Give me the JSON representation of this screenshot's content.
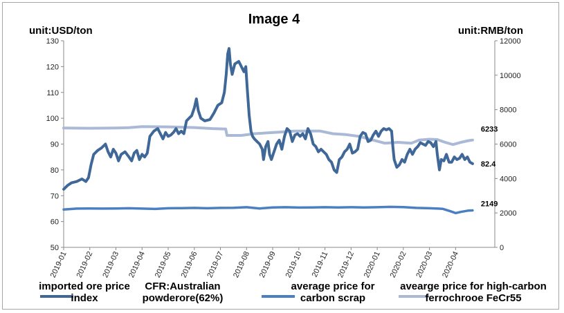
{
  "chart_data": {
    "type": "line",
    "title": "Image 4",
    "left_unit": "unit:USD/ton",
    "right_unit": "unit:RMB/ton",
    "left_axis": {
      "min": 50,
      "max": 130,
      "step": 10,
      "ticks": [
        "50",
        "60",
        "70",
        "80",
        "90",
        "100",
        "110",
        "120",
        "130"
      ]
    },
    "right_axis": {
      "min": 0,
      "max": 12000,
      "step": 2000,
      "ticks": [
        "0",
        "2000",
        "4000",
        "6000",
        "8000",
        "10000",
        "12000"
      ]
    },
    "x_range": [
      0,
      16.5
    ],
    "x_categories": [
      "2019-01",
      "2019-02",
      "2019-03",
      "2019-04",
      "2019-05",
      "2019-06",
      "2019-07",
      "2019-08",
      "2019-09",
      "2019-10",
      "2019-11",
      "2019-12",
      "2020-01",
      "2020-02",
      "2020-03",
      "2020-04"
    ],
    "series": [
      {
        "name": "imported ore price index CFR:Australian powderore(62%)",
        "legend_left": "imported ore price\nindex",
        "legend_right": "CFR:Australian\npowderore(62%)",
        "axis": "left",
        "color": "#3f6797",
        "end_label": "82.4",
        "points": [
          [
            0.0,
            72.5
          ],
          [
            0.15,
            74
          ],
          [
            0.3,
            75
          ],
          [
            0.5,
            75.5
          ],
          [
            0.7,
            76.5
          ],
          [
            0.85,
            75.5
          ],
          [
            0.95,
            77
          ],
          [
            1.05,
            82
          ],
          [
            1.15,
            86
          ],
          [
            1.3,
            87.5
          ],
          [
            1.45,
            88.5
          ],
          [
            1.6,
            90
          ],
          [
            1.7,
            87
          ],
          [
            1.8,
            85
          ],
          [
            1.9,
            88
          ],
          [
            2.0,
            86.5
          ],
          [
            2.1,
            83.5
          ],
          [
            2.2,
            86
          ],
          [
            2.35,
            87
          ],
          [
            2.5,
            85
          ],
          [
            2.6,
            83.5
          ],
          [
            2.7,
            86.5
          ],
          [
            2.8,
            87.5
          ],
          [
            2.9,
            84
          ],
          [
            3.0,
            86
          ],
          [
            3.1,
            85
          ],
          [
            3.2,
            86.5
          ],
          [
            3.3,
            93
          ],
          [
            3.45,
            95
          ],
          [
            3.6,
            96
          ],
          [
            3.7,
            94
          ],
          [
            3.8,
            92
          ],
          [
            3.9,
            94.5
          ],
          [
            4.0,
            93
          ],
          [
            4.1,
            93.5
          ],
          [
            4.2,
            94.5
          ],
          [
            4.3,
            96
          ],
          [
            4.4,
            94
          ],
          [
            4.5,
            95
          ],
          [
            4.6,
            94
          ],
          [
            4.7,
            99
          ],
          [
            4.8,
            100
          ],
          [
            4.9,
            101
          ],
          [
            5.0,
            104
          ],
          [
            5.08,
            107.5
          ],
          [
            5.15,
            103
          ],
          [
            5.25,
            100
          ],
          [
            5.4,
            99
          ],
          [
            5.6,
            99.5
          ],
          [
            5.75,
            102
          ],
          [
            5.9,
            105
          ],
          [
            6.05,
            106
          ],
          [
            6.15,
            110
          ],
          [
            6.22,
            117
          ],
          [
            6.28,
            125
          ],
          [
            6.33,
            127
          ],
          [
            6.38,
            121
          ],
          [
            6.45,
            117
          ],
          [
            6.55,
            121
          ],
          [
            6.7,
            122
          ],
          [
            6.8,
            120
          ],
          [
            6.9,
            118
          ],
          [
            6.97,
            120
          ],
          [
            7.03,
            111
          ],
          [
            7.1,
            101
          ],
          [
            7.17,
            95
          ],
          [
            7.23,
            93
          ],
          [
            7.3,
            92
          ],
          [
            7.4,
            91
          ],
          [
            7.5,
            90
          ],
          [
            7.6,
            88
          ],
          [
            7.65,
            84
          ],
          [
            7.73,
            89
          ],
          [
            7.82,
            91
          ],
          [
            7.88,
            86
          ],
          [
            7.95,
            84
          ],
          [
            8.05,
            87
          ],
          [
            8.15,
            90
          ],
          [
            8.25,
            91.5
          ],
          [
            8.35,
            88
          ],
          [
            8.45,
            93
          ],
          [
            8.55,
            96
          ],
          [
            8.65,
            95
          ],
          [
            8.75,
            91
          ],
          [
            8.85,
            93.5
          ],
          [
            8.95,
            94
          ],
          [
            9.05,
            93
          ],
          [
            9.15,
            94
          ],
          [
            9.25,
            92
          ],
          [
            9.35,
            96
          ],
          [
            9.45,
            94
          ],
          [
            9.55,
            90
          ],
          [
            9.65,
            89
          ],
          [
            9.75,
            87
          ],
          [
            9.85,
            88
          ],
          [
            9.95,
            87
          ],
          [
            10.05,
            86
          ],
          [
            10.15,
            84
          ],
          [
            10.25,
            83
          ],
          [
            10.35,
            80
          ],
          [
            10.45,
            79
          ],
          [
            10.55,
            84
          ],
          [
            10.65,
            85
          ],
          [
            10.75,
            87
          ],
          [
            10.85,
            88
          ],
          [
            10.95,
            90
          ],
          [
            11.05,
            86.5
          ],
          [
            11.15,
            87
          ],
          [
            11.25,
            88
          ],
          [
            11.35,
            93
          ],
          [
            11.45,
            94.5
          ],
          [
            11.55,
            94
          ],
          [
            11.65,
            91
          ],
          [
            11.75,
            91.5
          ],
          [
            11.85,
            93.5
          ],
          [
            11.95,
            95
          ],
          [
            12.05,
            93
          ],
          [
            12.15,
            95
          ],
          [
            12.25,
            96
          ],
          [
            12.35,
            95.5
          ],
          [
            12.45,
            96
          ],
          [
            12.55,
            95
          ],
          [
            12.6,
            89
          ],
          [
            12.65,
            84
          ],
          [
            12.75,
            81
          ],
          [
            12.85,
            82
          ],
          [
            12.95,
            84
          ],
          [
            13.05,
            83
          ],
          [
            13.15,
            86
          ],
          [
            13.25,
            88
          ],
          [
            13.35,
            86
          ],
          [
            13.45,
            88
          ],
          [
            13.55,
            89
          ],
          [
            13.65,
            90.5
          ],
          [
            13.75,
            90
          ],
          [
            13.85,
            89.5
          ],
          [
            13.95,
            91
          ],
          [
            14.05,
            90.5
          ],
          [
            14.15,
            89
          ],
          [
            14.25,
            91
          ],
          [
            14.3,
            86
          ],
          [
            14.38,
            80
          ],
          [
            14.45,
            84
          ],
          [
            14.55,
            83.5
          ],
          [
            14.65,
            86
          ],
          [
            14.75,
            83
          ],
          [
            14.85,
            83
          ],
          [
            14.95,
            85
          ],
          [
            15.05,
            84
          ],
          [
            15.15,
            84.5
          ],
          [
            15.25,
            86
          ],
          [
            15.35,
            84
          ],
          [
            15.45,
            85
          ],
          [
            15.55,
            83
          ],
          [
            15.65,
            82.4
          ]
        ]
      },
      {
        "name": "average price for carbon scrap",
        "legend": "average price for\ncarbon scrap",
        "axis": "right",
        "color": "#4a7fc1",
        "end_label": "2149",
        "points": [
          [
            0.0,
            2200
          ],
          [
            0.5,
            2250
          ],
          [
            1.0,
            2260
          ],
          [
            1.5,
            2250
          ],
          [
            2.0,
            2260
          ],
          [
            2.5,
            2270
          ],
          [
            3.0,
            2250
          ],
          [
            3.5,
            2230
          ],
          [
            4.0,
            2270
          ],
          [
            4.5,
            2280
          ],
          [
            5.0,
            2290
          ],
          [
            5.5,
            2270
          ],
          [
            6.0,
            2290
          ],
          [
            6.5,
            2300
          ],
          [
            7.0,
            2330
          ],
          [
            7.5,
            2260
          ],
          [
            8.0,
            2320
          ],
          [
            8.5,
            2330
          ],
          [
            9.0,
            2310
          ],
          [
            9.5,
            2320
          ],
          [
            10.0,
            2330
          ],
          [
            10.5,
            2320
          ],
          [
            11.0,
            2330
          ],
          [
            11.5,
            2320
          ],
          [
            12.0,
            2330
          ],
          [
            12.5,
            2350
          ],
          [
            13.0,
            2340
          ],
          [
            13.5,
            2290
          ],
          [
            14.0,
            2270
          ],
          [
            14.5,
            2240
          ],
          [
            14.8,
            2100
          ],
          [
            15.0,
            1990
          ],
          [
            15.2,
            2060
          ],
          [
            15.5,
            2140
          ],
          [
            15.65,
            2149
          ]
        ]
      },
      {
        "name": "avearge price for high-carbon ferrochrooe FeCr55",
        "legend": "avearge price for high-carbon\nferrochrooe FeCr55",
        "axis": "right",
        "color": "#a9b9d6",
        "end_label": "6233",
        "points": [
          [
            0.0,
            6930
          ],
          [
            1.0,
            6920
          ],
          [
            2.0,
            6930
          ],
          [
            2.5,
            6950
          ],
          [
            3.0,
            7010
          ],
          [
            4.0,
            7000
          ],
          [
            5.0,
            6960
          ],
          [
            5.7,
            6900
          ],
          [
            6.1,
            6880
          ],
          [
            6.2,
            6880
          ],
          [
            6.25,
            6500
          ],
          [
            6.8,
            6500
          ],
          [
            7.3,
            6600
          ],
          [
            7.8,
            6650
          ],
          [
            8.3,
            6700
          ],
          [
            8.8,
            6750
          ],
          [
            9.3,
            6760
          ],
          [
            9.8,
            6760
          ],
          [
            10.3,
            6600
          ],
          [
            10.8,
            6550
          ],
          [
            11.3,
            6450
          ],
          [
            11.8,
            6250
          ],
          [
            12.3,
            6050
          ],
          [
            12.8,
            6100
          ],
          [
            13.1,
            6070
          ],
          [
            13.3,
            6050
          ],
          [
            13.6,
            6230
          ],
          [
            14.0,
            6280
          ],
          [
            14.3,
            6260
          ],
          [
            14.6,
            6100
          ],
          [
            14.9,
            5970
          ],
          [
            15.2,
            6100
          ],
          [
            15.5,
            6200
          ],
          [
            15.65,
            6233
          ]
        ]
      }
    ]
  }
}
